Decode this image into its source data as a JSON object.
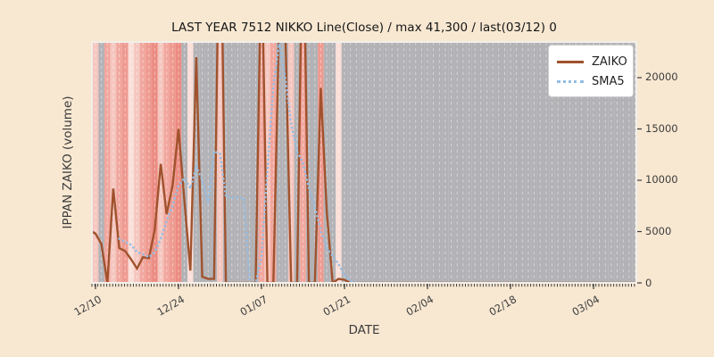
{
  "figure": {
    "title": "LAST YEAR 7512 NIKKO Line(Close) / max 41,300 / last(03/12) 0",
    "xlabel": "DATE",
    "ylabel": "IPPAN ZAIKO (volume)",
    "background": "#f8e8d2",
    "spine_color": "#f2efe9",
    "tick_color": "#3c3c3c"
  },
  "legend": {
    "items": [
      {
        "label": "ZAIKO",
        "style": "solid",
        "color": "#a0522d"
      },
      {
        "label": "SMA5",
        "style": "dotted",
        "color": "#94bde4"
      }
    ]
  },
  "chart_data": {
    "type": "line",
    "title": "LAST YEAR 7512 NIKKO Line(Close) / max 41,300 / last(03/12) 0",
    "xlabel": "DATE",
    "ylabel": "IPPAN ZAIKO (volume)",
    "stated_max": 41300,
    "stated_last": {
      "date": "03/12",
      "value": 0
    },
    "x_unit": "calendar days, day 0 = 12/10",
    "x_domain": [
      -0.6,
      91.3
    ],
    "y_domain": [
      0,
      23478
    ],
    "y_ticks": [
      0,
      5000,
      10000,
      15000,
      20000
    ],
    "x_ticks": [
      {
        "day": 0,
        "label": "12/10"
      },
      {
        "day": 14,
        "label": "12/24"
      },
      {
        "day": 28,
        "label": "01/07"
      },
      {
        "day": 42,
        "label": "01/21"
      },
      {
        "day": 56,
        "label": "02/04"
      },
      {
        "day": 70,
        "label": "02/18"
      },
      {
        "day": 84,
        "label": "03/04"
      }
    ],
    "grid": {
      "per_day_dashed_white": true
    },
    "series": [
      {
        "name": "ZAIKO",
        "color": "#a0522d",
        "style": "solid",
        "width": 2.4,
        "start_day": 0,
        "lead_point": [
          -0.6,
          5000
        ],
        "values": [
          4800,
          3800,
          0,
          9200,
          3400,
          3100,
          2300,
          1400,
          2500,
          2400,
          5200,
          11600,
          6700,
          9500,
          15000,
          8000,
          1200,
          22000,
          600,
          400,
          400,
          41300,
          0,
          0,
          0,
          0,
          0,
          0,
          33000,
          0,
          0,
          26000,
          25000,
          0,
          0,
          38000,
          0,
          0,
          19000,
          7000,
          0,
          400,
          300,
          0,
          0,
          0,
          0,
          0,
          0,
          0,
          0,
          0,
          0,
          0,
          0,
          0,
          0,
          0,
          0,
          0,
          0,
          0,
          0,
          0,
          0,
          0,
          0,
          0,
          0,
          0,
          0,
          0,
          0,
          0,
          0,
          0,
          0,
          0,
          0,
          0,
          0,
          0,
          0,
          0,
          0,
          0,
          0,
          0,
          0,
          0,
          0,
          0,
          0
        ]
      },
      {
        "name": "SMA5",
        "color": "#94bde4",
        "style": "dotted",
        "width": 2.6,
        "start_day": 4,
        "lead_point": null,
        "values": [
          4300,
          4000,
          3700,
          3000,
          2800,
          2500,
          3000,
          4300,
          6000,
          7500,
          9500,
          10200,
          9200,
          11400,
          10000,
          7800,
          12800,
          12600,
          8400,
          8300,
          8300,
          8300,
          0,
          0,
          2500,
          11000,
          19200,
          23300,
          20000,
          15500,
          12800,
          11700,
          9200,
          7400,
          5100,
          3400,
          2600,
          1800,
          800,
          200,
          0,
          0,
          0,
          0,
          0,
          0,
          0,
          0,
          0,
          0,
          0,
          0,
          0,
          0,
          0,
          0,
          0,
          0,
          0,
          0,
          0,
          0,
          0,
          0,
          0,
          0,
          0,
          0,
          0,
          0,
          0,
          0,
          0,
          0,
          0,
          0,
          0,
          0,
          0,
          0,
          0,
          0,
          0,
          0,
          0,
          0,
          0,
          0
        ]
      }
    ],
    "bands": {
      "palette": {
        "P0": "#fadfd8",
        "P1": "#f5c6bf",
        "P2": "#f1a79e",
        "P3": "#ee9a90",
        "P3X": "#eb8b81",
        "G": "#b2b2b6"
      },
      "day_colors": [
        "P1",
        "G",
        "P2",
        "P1",
        "P2",
        "P3",
        "P0",
        "P1",
        "P2",
        "P3",
        "P3X",
        "P1",
        "P2",
        "P3",
        "P3X",
        "G",
        "P0",
        "G",
        "G",
        "G",
        "G",
        "P1",
        "G",
        "G",
        "G",
        "G",
        "G",
        "G",
        "P2",
        "P1",
        "P2",
        "G",
        "G",
        "P1",
        "G",
        "P2",
        "G",
        "G",
        "P3",
        "G",
        "G",
        "P0"
      ],
      "default_color": "G"
    }
  }
}
